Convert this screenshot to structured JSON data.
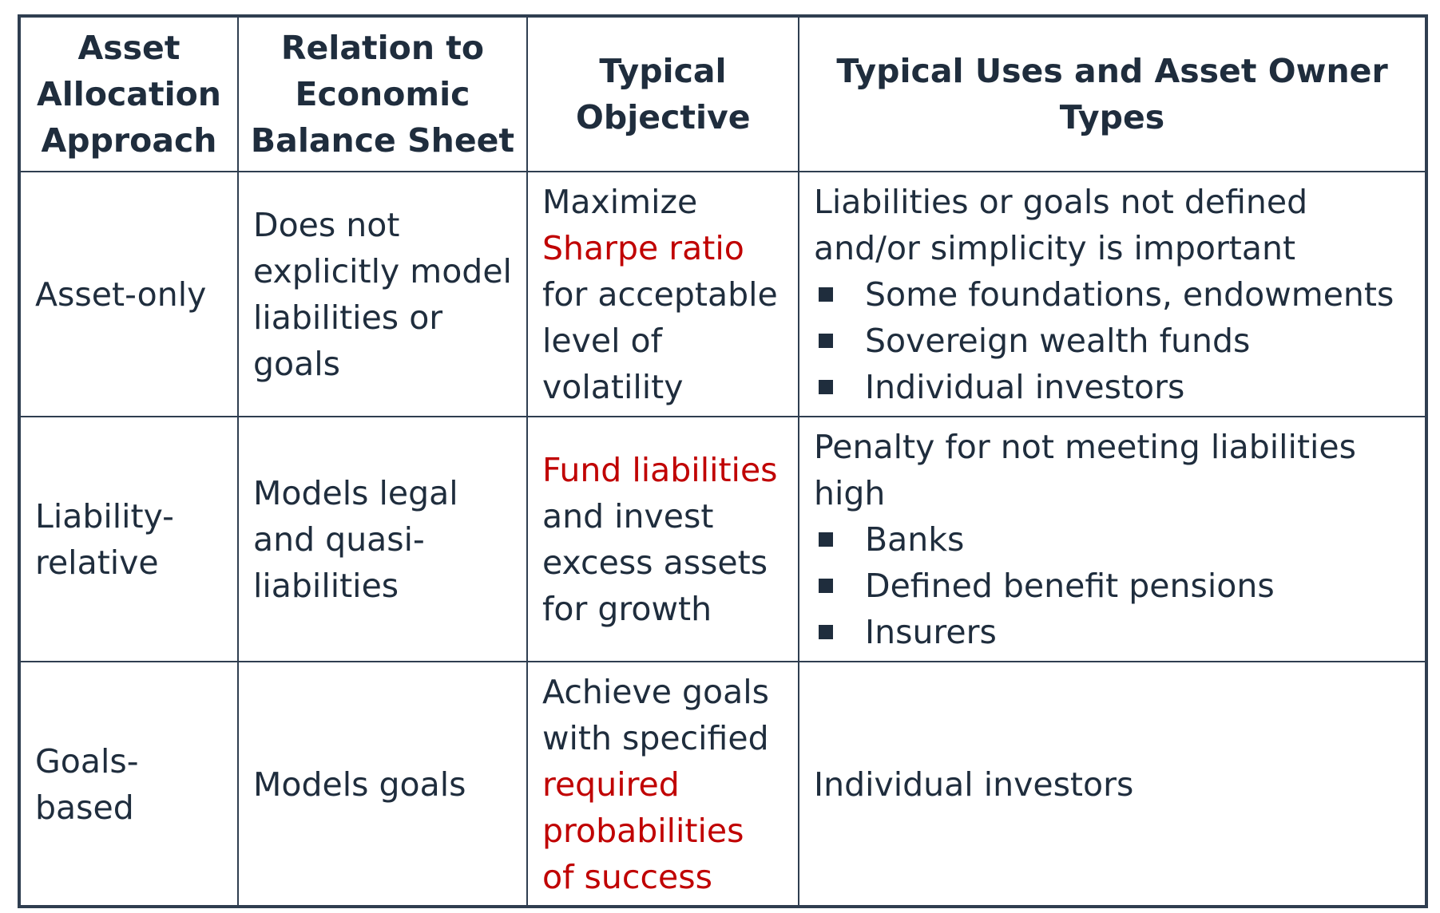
{
  "headers": [
    "Asset Allocation Approach",
    "Relation to Economic Balance Sheet",
    "Typical Objective",
    "Typical Uses and Asset Owner Types"
  ],
  "rows": [
    {
      "approach": "Asset-only",
      "relation": "Does not explicitly model liabilities or goals",
      "objective": {
        "pre": "Maximize ",
        "highlight": "Sharpe ratio",
        "post": " for acceptable level of volatility"
      },
      "uses": {
        "intro": "Liabilities or goals not defined and/or simplicity is important",
        "items": [
          "Some foundations, endowments",
          "Sovereign wealth funds",
          "Individual investors"
        ]
      }
    },
    {
      "approach": "Liability-relative",
      "relation": "Models legal and quasi-liabilities",
      "objective": {
        "pre": "",
        "highlight": "Fund liabilities",
        "post": " and invest excess assets for growth"
      },
      "uses": {
        "intro": "Penalty for not meeting liabilities high",
        "items": [
          "Banks",
          "Defined benefit pensions",
          "Insurers"
        ]
      }
    },
    {
      "approach": "Goals-based",
      "relation": "Models goals",
      "objective": {
        "pre": "Achieve goals with specified ",
        "highlight": "required probabilities of success",
        "post": ""
      },
      "uses": {
        "intro": "Individual investors",
        "items": []
      }
    }
  ],
  "colors": {
    "text": "#1f2d3d",
    "highlight": "#c00000",
    "border": "#2f3e50"
  }
}
